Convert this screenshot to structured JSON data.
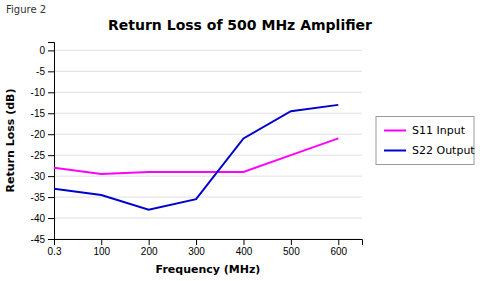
{
  "chart_data": {
    "type": "line",
    "title": "Return Loss of 500 MHz Amplifier",
    "annotations": [
      "Figure 2"
    ],
    "x_label": "Frequency (MHz)",
    "y_label": "Return Loss (dB)",
    "x": [
      0.3,
      100,
      200,
      300,
      400,
      500,
      600
    ],
    "series": [
      {
        "name": "S11 Input",
        "color": "#ff00ff",
        "values": [
          -28,
          -29.5,
          -29,
          -29,
          -29,
          -25,
          -21
        ]
      },
      {
        "name": "S22 Output",
        "color": "#0000cc",
        "values": [
          -33,
          -34.5,
          -38,
          -35.5,
          -21,
          -14.5,
          -13
        ]
      }
    ],
    "xlim": [
      0.3,
      650
    ],
    "xticks": [
      0.3,
      100,
      200,
      300,
      400,
      500,
      600
    ],
    "ylim": [
      -45,
      2
    ],
    "yticks": [
      0,
      -5,
      -10,
      -15,
      -20,
      -25,
      -30,
      -35,
      -40,
      -45
    ],
    "grid": "y",
    "legend": "right"
  }
}
